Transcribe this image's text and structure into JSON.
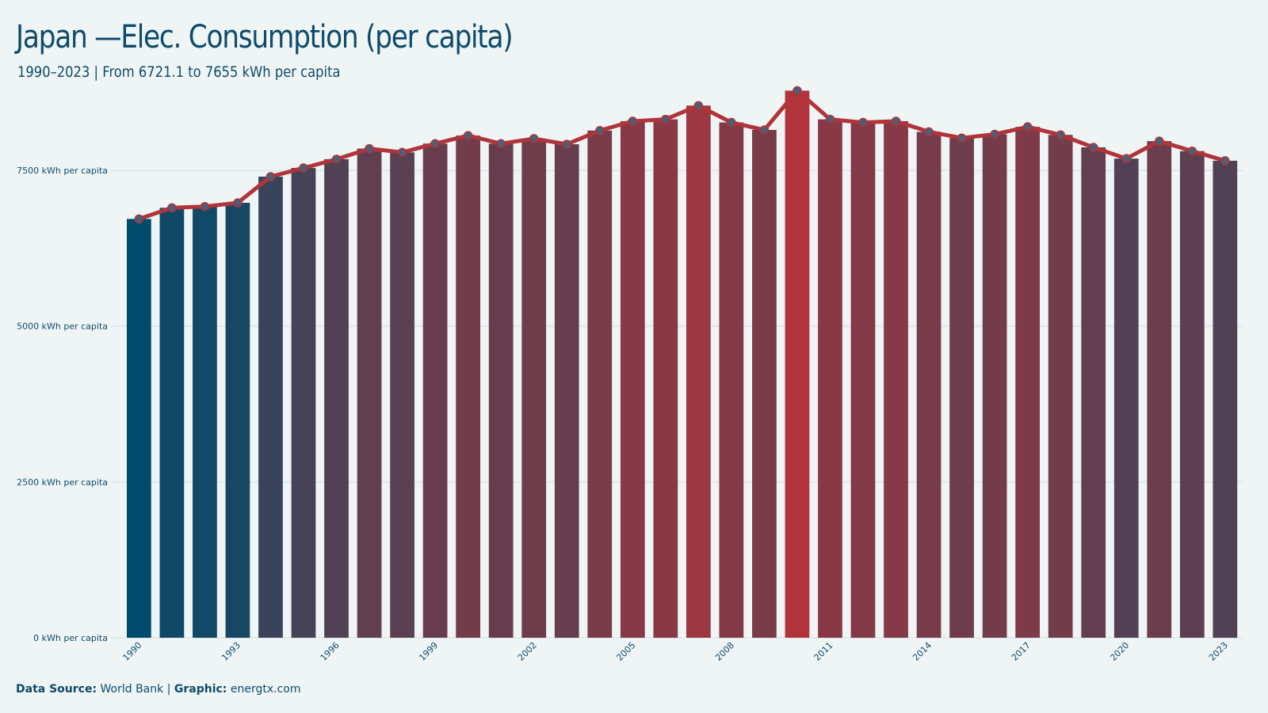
{
  "header": {
    "title": "Japan —Elec. Consumption (per capita)",
    "subtitle": "1990–2023 | From 6721.1 to 7655 kWh per capita"
  },
  "footer": {
    "source_label": "Data Source:",
    "source_value": "World Bank",
    "separator": "|",
    "graphic_label": "Graphic:",
    "graphic_value": "energtx.com"
  },
  "colors": {
    "background": "#eff5f5",
    "low": "#004b6b",
    "high": "#b0343a",
    "line": "#b0343a",
    "marker_fill": "#4a5f78",
    "grid": "#d5dcdf",
    "text": "#0d4a6b"
  },
  "chart_data": {
    "type": "bar",
    "overlay": "line",
    "title": "Japan —Elec. Consumption (per capita)",
    "subtitle": "1990–2023 | From 6721.1 to 7655 kWh per capita",
    "xlabel": "",
    "ylabel": "",
    "ylim": [
      0,
      8900
    ],
    "yticks": [
      0,
      2500,
      5000,
      7500
    ],
    "ytick_labels": [
      "0 kWh per capita",
      "2500 kWh per capita",
      "5000 kWh per capita",
      "7500 kWh per capita"
    ],
    "xtick_labels": [
      "1990",
      "1993",
      "1996",
      "1999",
      "2002",
      "2005",
      "2008",
      "2011",
      "2014",
      "2017",
      "2020",
      "2023"
    ],
    "grid": true,
    "categories": [
      "1990",
      "1991",
      "1992",
      "1993",
      "1994",
      "1995",
      "1996",
      "1997",
      "1998",
      "1999",
      "2000",
      "2001",
      "2002",
      "2003",
      "2004",
      "2005",
      "2006",
      "2007",
      "2008",
      "2009",
      "2010",
      "2011",
      "2012",
      "2013",
      "2014",
      "2015",
      "2016",
      "2017",
      "2018",
      "2019",
      "2020",
      "2021",
      "2022",
      "2023"
    ],
    "values": [
      6721.1,
      6900,
      6920,
      6980,
      7400,
      7540,
      7680,
      7850,
      7790,
      7930,
      8060,
      7930,
      8010,
      7920,
      8140,
      8290,
      8320,
      8540,
      8270,
      8150,
      8780,
      8320,
      8270,
      8290,
      8120,
      8020,
      8080,
      8200,
      8070,
      7870,
      7690,
      7970,
      7810,
      7655
    ]
  }
}
